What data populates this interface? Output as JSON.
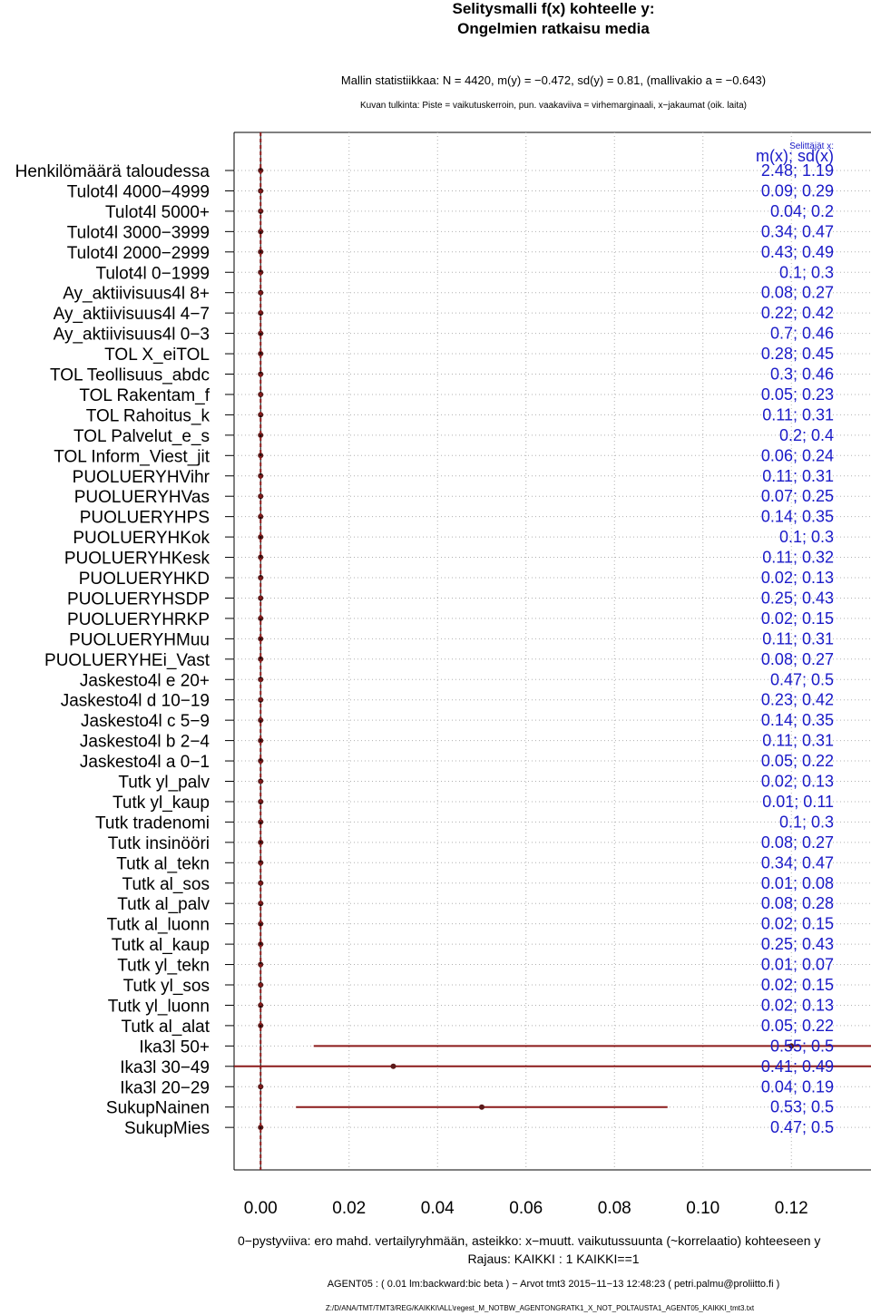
{
  "titles": {
    "line1": "Selitysmalli f(x) kohteelle y:",
    "line2": "Ongelmien ratkaisu media"
  },
  "stats_line": "Mallin statistiikkaa: N = 4420, m(y) = −0.472, sd(y) = 0.81, (mallivakio a = −0.643)",
  "interpretation_line": "Kuvan tulkinta: Piste = vaikutuskerroin, pun. vaakaviiva = virhemarginaali, x−jakaumat (oik. laita)",
  "footer": {
    "zero_line_note": "0−pystyviiva: ero mahd. vertailyryhmään, asteikko: x−muutt. vaikutussuunta (~korrelaatio) kohteeseen y",
    "rajaus": "Rajaus: KAIKKI : 1  KAIKKI==1",
    "agent": "AGENT05 : ( 0.01 lm:backward:bic beta )  −  Arvot tmt3 2015−11−13 12:48:23 ( petri.palmu@proliitto.fi )",
    "path": "Z:/D/ANA/TMT/TMT3/REG/KAIKKI\\ALL\\regest_M_NOTBW_AGENTONGRATK1_X_NOT_POLTAUSTA1_AGENT05_KAIKKI_tmt3.txt"
  },
  "colors": {
    "point": "#5a1a1a",
    "error_bar": "#8b1a1a",
    "zero_line": "#8b1a1a",
    "stats_text": "#1a1ac8",
    "grid": "#b0b0b0"
  },
  "chart_data": {
    "type": "scatter",
    "subtype": "coefficient-plot-with-error-bars",
    "x_ticks": [
      "0.00",
      "0.02",
      "0.04",
      "0.06",
      "0.08",
      "0.10",
      "0.12"
    ],
    "xlim": [
      -0.006,
      0.138
    ],
    "right_panel_title": "Selittäjät x:",
    "right_panel_header": "m(x); sd(x)",
    "grid": true,
    "variables": [
      {
        "label": "Henkilömäärä taloudessa",
        "coef": 0,
        "stats": "2.48; 1.19"
      },
      {
        "label": "Tulot4l 4000−4999",
        "coef": 0,
        "stats": "0.09; 0.29"
      },
      {
        "label": "Tulot4l 5000+",
        "coef": 0,
        "stats": "0.04; 0.2"
      },
      {
        "label": "Tulot4l 3000−3999",
        "coef": 0,
        "stats": "0.34; 0.47"
      },
      {
        "label": "Tulot4l 2000−2999",
        "coef": 0,
        "stats": "0.43; 0.49"
      },
      {
        "label": "Tulot4l 0−1999",
        "coef": 0,
        "stats": "0.1; 0.3"
      },
      {
        "label": "Ay_aktiivisuus4l 8+",
        "coef": 0,
        "stats": "0.08; 0.27"
      },
      {
        "label": "Ay_aktiivisuus4l 4−7",
        "coef": 0,
        "stats": "0.22; 0.42"
      },
      {
        "label": "Ay_aktiivisuus4l 0−3",
        "coef": 0,
        "stats": "0.7; 0.46"
      },
      {
        "label": "TOL X_eiTOL",
        "coef": 0,
        "stats": "0.28; 0.45"
      },
      {
        "label": "TOL Teollisuus_abdc",
        "coef": 0,
        "stats": "0.3; 0.46"
      },
      {
        "label": "TOL Rakentam_f",
        "coef": 0,
        "stats": "0.05; 0.23"
      },
      {
        "label": "TOL Rahoitus_k",
        "coef": 0,
        "stats": "0.11; 0.31"
      },
      {
        "label": "TOL Palvelut_e_s",
        "coef": 0,
        "stats": "0.2; 0.4"
      },
      {
        "label": "TOL Inform_Viest_jit",
        "coef": 0,
        "stats": "0.06; 0.24"
      },
      {
        "label": "PUOLUERYHVihr",
        "coef": 0,
        "stats": "0.11; 0.31"
      },
      {
        "label": "PUOLUERYHVas",
        "coef": 0,
        "stats": "0.07; 0.25"
      },
      {
        "label": "PUOLUERYHPS",
        "coef": 0,
        "stats": "0.14; 0.35"
      },
      {
        "label": "PUOLUERYHKok",
        "coef": 0,
        "stats": "0.1; 0.3"
      },
      {
        "label": "PUOLUERYHKesk",
        "coef": 0,
        "stats": "0.11; 0.32"
      },
      {
        "label": "PUOLUERYHKD",
        "coef": 0,
        "stats": "0.02; 0.13"
      },
      {
        "label": "PUOLUERYHSDP",
        "coef": 0,
        "stats": "0.25; 0.43"
      },
      {
        "label": "PUOLUERYHRKP",
        "coef": 0,
        "stats": "0.02; 0.15"
      },
      {
        "label": "PUOLUERYHMuu",
        "coef": 0,
        "stats": "0.11; 0.31"
      },
      {
        "label": "PUOLUERYHEi_Vast",
        "coef": 0,
        "stats": "0.08; 0.27"
      },
      {
        "label": "Jaskesto4l e 20+",
        "coef": 0,
        "stats": "0.47; 0.5"
      },
      {
        "label": "Jaskesto4l d 10−19",
        "coef": 0,
        "stats": "0.23; 0.42"
      },
      {
        "label": "Jaskesto4l c 5−9",
        "coef": 0,
        "stats": "0.14; 0.35"
      },
      {
        "label": "Jaskesto4l b 2−4",
        "coef": 0,
        "stats": "0.11; 0.31"
      },
      {
        "label": "Jaskesto4l a 0−1",
        "coef": 0,
        "stats": "0.05; 0.22"
      },
      {
        "label": "Tutk yl_palv",
        "coef": 0,
        "stats": "0.02; 0.13"
      },
      {
        "label": "Tutk yl_kaup",
        "coef": 0,
        "stats": "0.01; 0.11"
      },
      {
        "label": "Tutk tradenomi",
        "coef": 0,
        "stats": "0.1; 0.3"
      },
      {
        "label": "Tutk insinööri",
        "coef": 0,
        "stats": "0.08; 0.27"
      },
      {
        "label": "Tutk al_tekn",
        "coef": 0,
        "stats": "0.34; 0.47"
      },
      {
        "label": "Tutk al_sos",
        "coef": 0,
        "stats": "0.01; 0.08"
      },
      {
        "label": "Tutk al_palv",
        "coef": 0,
        "stats": "0.08; 0.28"
      },
      {
        "label": "Tutk al_luonn",
        "coef": 0,
        "stats": "0.02; 0.15"
      },
      {
        "label": "Tutk al_kaup",
        "coef": 0,
        "stats": "0.25; 0.43"
      },
      {
        "label": "Tutk yl_tekn",
        "coef": 0,
        "stats": "0.01; 0.07"
      },
      {
        "label": "Tutk yl_sos",
        "coef": 0,
        "stats": "0.02; 0.15"
      },
      {
        "label": "Tutk yl_luonn",
        "coef": 0,
        "stats": "0.02; 0.13"
      },
      {
        "label": "Tutk al_alat",
        "coef": 0,
        "stats": "0.05; 0.22"
      },
      {
        "label": "Ika3l 50+",
        "coef": 0.12,
        "err_low": 0.012,
        "err_high": 0.138,
        "stats": "0.55; 0.5"
      },
      {
        "label": "Ika3l 30−49",
        "coef": 0.03,
        "err_low": -0.006,
        "err_high": 0.138,
        "stats": "0.41; 0.49"
      },
      {
        "label": "Ika3l 20−29",
        "coef": 0,
        "stats": "0.04; 0.19"
      },
      {
        "label": "SukupNainen",
        "coef": 0.05,
        "err_low": 0.008,
        "err_high": 0.092,
        "stats": "0.53; 0.5"
      },
      {
        "label": "SukupMies",
        "coef": 0,
        "stats": "0.47; 0.5"
      }
    ]
  }
}
